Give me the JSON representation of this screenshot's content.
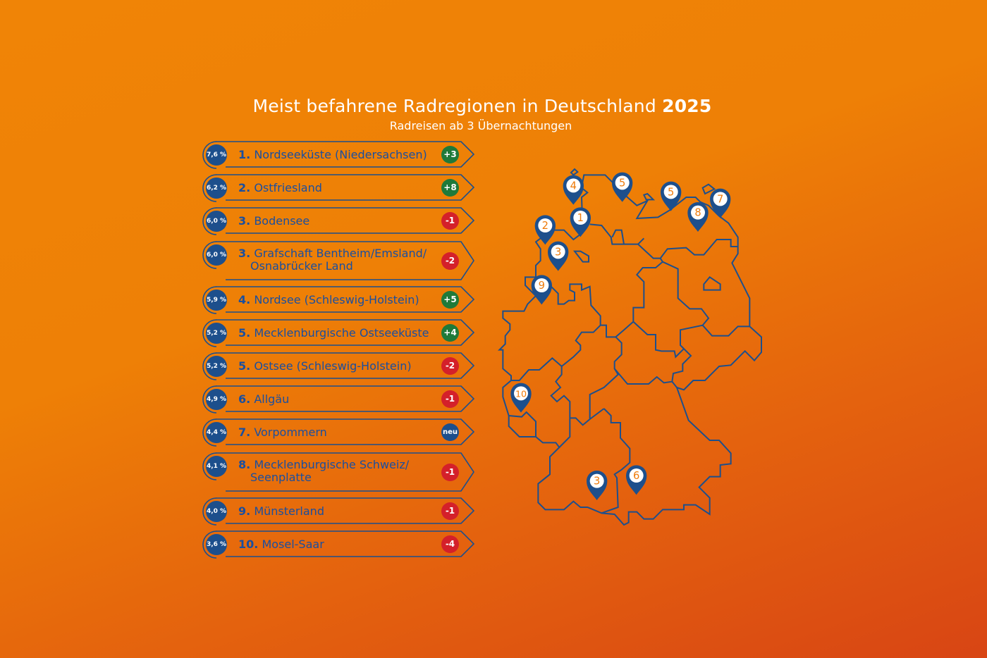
{
  "title": {
    "text": "Meist befahrene Radregionen in Deutschland",
    "year": "2025"
  },
  "subtitle": "Radreisen ab 3 Übernachtungen",
  "colors": {
    "navy": "#1d4f8c",
    "text_blue": "#1a4fa0",
    "up": "#1f7a3a",
    "down": "#d4202a",
    "new": "#1d4f8c"
  },
  "ranking": [
    {
      "share": "7,6 %",
      "rank": "1.",
      "name": [
        "Nordseeküste (Niedersachsen)"
      ],
      "change": "+3",
      "trend": "up"
    },
    {
      "share": "6,2 %",
      "rank": "2.",
      "name": [
        "Ostfriesland"
      ],
      "change": "+8",
      "trend": "up"
    },
    {
      "share": "6,0 %",
      "rank": "3.",
      "name": [
        "Bodensee"
      ],
      "change": "-1",
      "trend": "down"
    },
    {
      "share": "6,0 %",
      "rank": "3.",
      "name": [
        "Grafschaft Bentheim/Emsland/",
        "Osnabrücker Land"
      ],
      "change": "-2",
      "trend": "down"
    },
    {
      "share": "5,9 %",
      "rank": "4.",
      "name": [
        "Nordsee (Schleswig-Holstein)"
      ],
      "change": "+5",
      "trend": "up"
    },
    {
      "share": "5,2 %",
      "rank": "5.",
      "name": [
        "Mecklenburgische Ostseeküste"
      ],
      "change": "+4",
      "trend": "up"
    },
    {
      "share": "5,2 %",
      "rank": "5.",
      "name": [
        "Ostsee (Schleswig-Holstein)"
      ],
      "change": "-2",
      "trend": "down"
    },
    {
      "share": "4,9 %",
      "rank": "6.",
      "name": [
        "Allgäu"
      ],
      "change": "-1",
      "trend": "down"
    },
    {
      "share": "4,4 %",
      "rank": "7.",
      "name": [
        "Vorpommern"
      ],
      "change": "neu",
      "trend": "new"
    },
    {
      "share": "4,1 %",
      "rank": "8.",
      "name": [
        "Mecklenburgische Schweiz/",
        "Seenplatte"
      ],
      "change": "-1",
      "trend": "down"
    },
    {
      "share": "4,0 %",
      "rank": "9.",
      "name": [
        "Münsterland"
      ],
      "change": "-1",
      "trend": "down"
    },
    {
      "share": "3,6 %",
      "rank": "10.",
      "name": [
        "Mosel-Saar"
      ],
      "change": "-4",
      "trend": "down"
    }
  ],
  "map_markers": [
    "4",
    "5",
    "5",
    "7",
    "8",
    "1",
    "2",
    "3",
    "9",
    "10",
    "3",
    "6"
  ]
}
